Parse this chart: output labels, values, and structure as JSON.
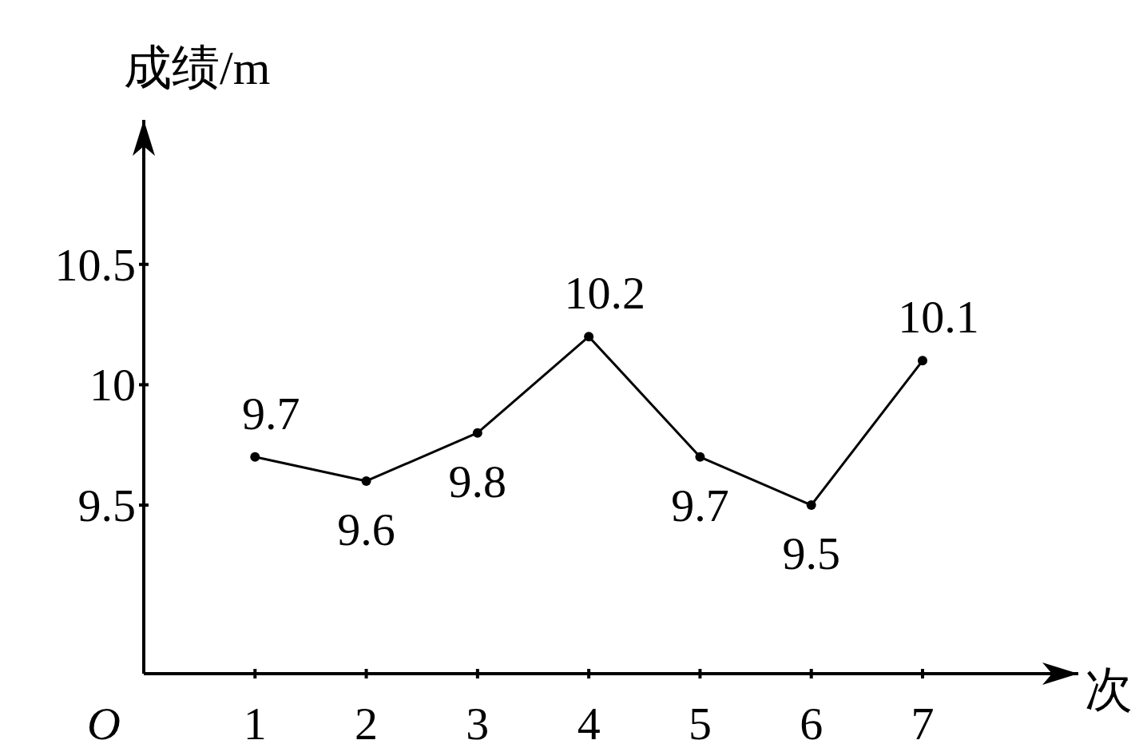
{
  "chart_data": {
    "type": "line",
    "xlabel": "次",
    "ylabel": "成绩/m",
    "x": [
      1,
      2,
      3,
      4,
      5,
      6,
      7
    ],
    "values": [
      9.7,
      9.6,
      9.8,
      10.2,
      9.7,
      9.5,
      10.1
    ],
    "color": "#000000",
    "marker": "circle",
    "data_labels": true,
    "xlim": [
      0,
      8.4
    ],
    "ylim": [
      8.8,
      11.1
    ],
    "xticks": [
      1,
      2,
      3,
      4,
      5,
      6,
      7
    ],
    "annotations": [
      "O"
    ],
    "yticks": [
      9.5,
      10,
      10.5
    ]
  }
}
